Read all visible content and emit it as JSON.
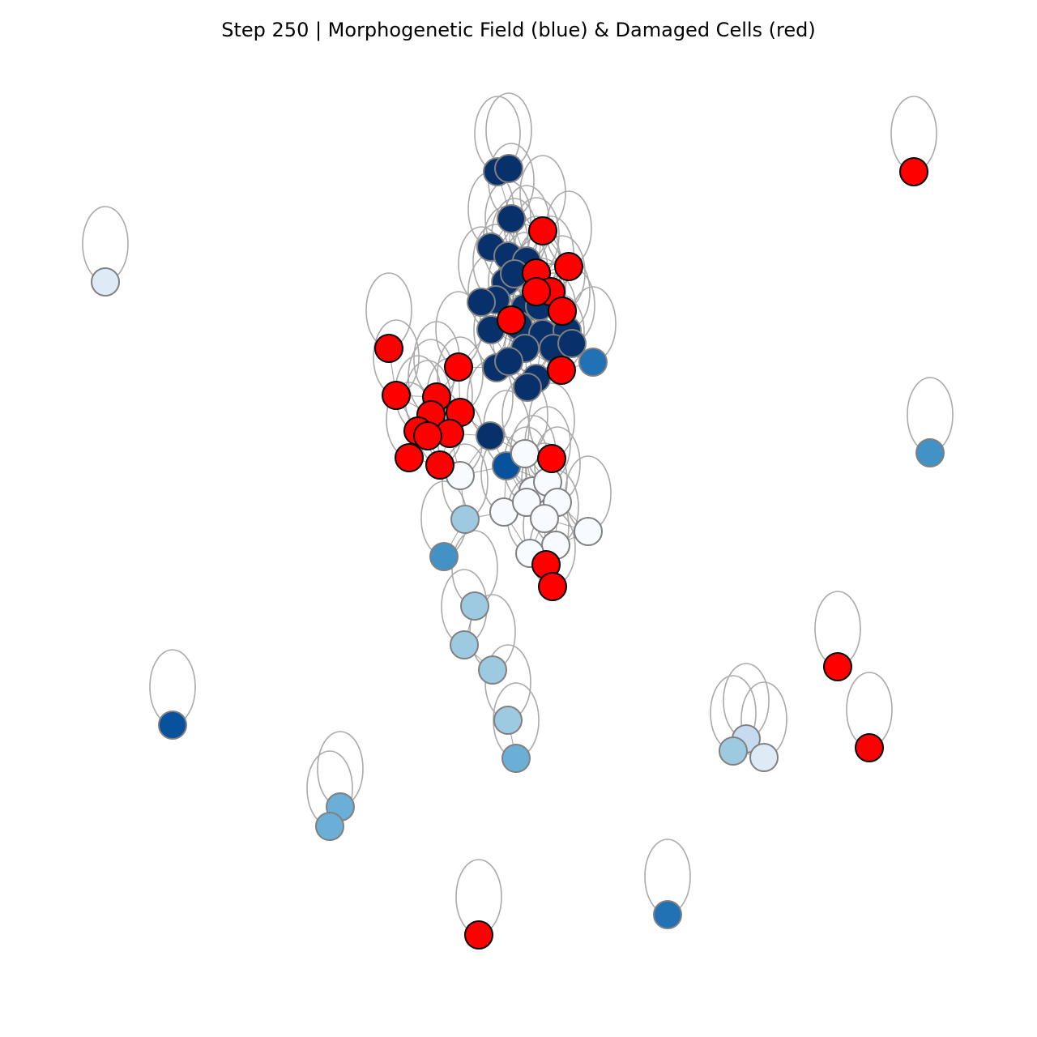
{
  "title": "Step 250 | Morphogenetic Field (blue) & Damaged Cells (red)",
  "colors": {
    "damaged": "#ff0000",
    "field_scale": [
      "#f7fbff",
      "#deebf7",
      "#c6dbef",
      "#9ecae1",
      "#6baed6",
      "#4292c6",
      "#2171b5",
      "#08519c",
      "#08306b"
    ]
  }
}
